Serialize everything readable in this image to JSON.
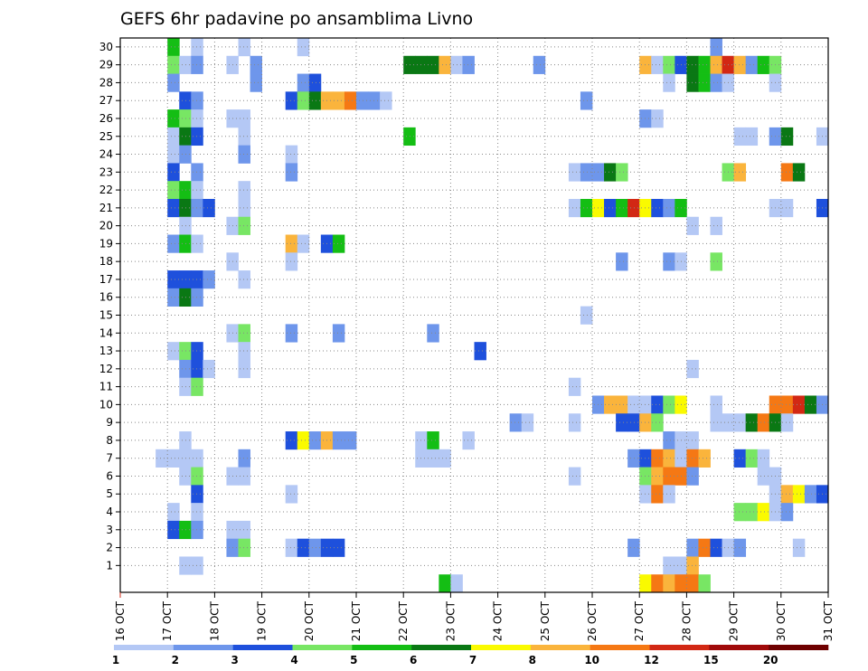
{
  "chart_data": {
    "type": "heatmap",
    "title": "GEFS 6hr padavine po ansamblima Livno",
    "xlabel": "",
    "ylabel": "",
    "x_ticks": [
      "16 OCT",
      "17 OCT",
      "18 OCT",
      "19 OCT",
      "20 OCT",
      "21 OCT",
      "22 OCT",
      "23 OCT",
      "24 OCT",
      "25 OCT",
      "26 OCT",
      "27 OCT",
      "28 OCT",
      "29 OCT",
      "30 OCT",
      "31 OCT"
    ],
    "y_ticks": [
      1,
      2,
      3,
      4,
      5,
      6,
      7,
      8,
      9,
      10,
      11,
      12,
      13,
      14,
      15,
      16,
      17,
      18,
      19,
      20,
      21,
      22,
      23,
      24,
      25,
      26,
      27,
      28,
      29,
      30
    ],
    "y_range": [
      0,
      30
    ],
    "step_hours": 6,
    "start_date": "2000-10-16",
    "grid": true,
    "legend": {
      "placement": "bottom",
      "bounds": [
        1,
        2,
        3,
        4,
        5,
        6,
        7,
        8,
        10,
        12,
        15,
        20
      ],
      "colors": [
        "#b4c8f5",
        "#6e96eb",
        "#1e50dc",
        "#78e664",
        "#14be14",
        "#0a7814",
        "#fafa00",
        "#fab43c",
        "#f57814",
        "#d22814",
        "#a00a0a",
        "#6e0000"
      ]
    },
    "cells": [
      [
        30,
        "2000-10-17T00:00",
        5
      ],
      [
        30,
        "2000-10-17T12:00",
        1
      ],
      [
        30,
        "2000-10-18T12:00",
        1
      ],
      [
        30,
        "2000-10-19T18:00",
        1
      ],
      [
        30,
        "2000-10-28T12:00",
        2
      ],
      [
        29,
        "2000-10-17T00:00",
        4
      ],
      [
        29,
        "2000-10-17T06:00",
        1
      ],
      [
        29,
        "2000-10-17T12:00",
        2
      ],
      [
        29,
        "2000-10-18T06:00",
        1
      ],
      [
        29,
        "2000-10-18T18:00",
        2
      ],
      [
        29,
        "2000-10-22T00:00",
        6
      ],
      [
        29,
        "2000-10-22T06:00",
        6
      ],
      [
        29,
        "2000-10-22T12:00",
        6
      ],
      [
        29,
        "2000-10-22T18:00",
        8
      ],
      [
        29,
        "2000-10-23T00:00",
        1
      ],
      [
        29,
        "2000-10-23T06:00",
        2
      ],
      [
        29,
        "2000-10-24T18:00",
        2
      ],
      [
        29,
        "2000-10-27T00:00",
        8
      ],
      [
        29,
        "2000-10-27T06:00",
        1
      ],
      [
        29,
        "2000-10-27T12:00",
        4
      ],
      [
        29,
        "2000-10-27T18:00",
        3
      ],
      [
        29,
        "2000-10-28T00:00",
        6
      ],
      [
        29,
        "2000-10-28T06:00",
        5
      ],
      [
        29,
        "2000-10-28T12:00",
        9
      ],
      [
        29,
        "2000-10-28T18:00",
        12
      ],
      [
        29,
        "2000-10-29T00:00",
        9
      ],
      [
        29,
        "2000-10-29T06:00",
        2
      ],
      [
        29,
        "2000-10-29T12:00",
        5
      ],
      [
        29,
        "2000-10-29T18:00",
        4
      ],
      [
        28,
        "2000-10-17T00:00",
        2
      ],
      [
        28,
        "2000-10-18T18:00",
        2
      ],
      [
        28,
        "2000-10-19T18:00",
        2
      ],
      [
        28,
        "2000-10-20T00:00",
        3
      ],
      [
        28,
        "2000-10-27T12:00",
        1
      ],
      [
        28,
        "2000-10-28T00:00",
        6
      ],
      [
        28,
        "2000-10-28T06:00",
        5
      ],
      [
        28,
        "2000-10-28T12:00",
        2
      ],
      [
        28,
        "2000-10-28T18:00",
        1
      ],
      [
        28,
        "2000-10-29T18:00",
        1
      ],
      [
        27,
        "2000-10-17T06:00",
        3
      ],
      [
        27,
        "2000-10-17T12:00",
        2
      ],
      [
        27,
        "2000-10-19T12:00",
        3
      ],
      [
        27,
        "2000-10-19T18:00",
        4
      ],
      [
        27,
        "2000-10-20T00:00",
        6
      ],
      [
        27,
        "2000-10-20T06:00",
        8
      ],
      [
        27,
        "2000-10-20T12:00",
        8
      ],
      [
        27,
        "2000-10-20T18:00",
        10
      ],
      [
        27,
        "2000-10-21T00:00",
        2
      ],
      [
        27,
        "2000-10-21T06:00",
        2
      ],
      [
        27,
        "2000-10-21T12:00",
        1
      ],
      [
        27,
        "2000-10-25T18:00",
        2
      ],
      [
        26,
        "2000-10-17T00:00",
        5
      ],
      [
        26,
        "2000-10-17T06:00",
        4
      ],
      [
        26,
        "2000-10-17T12:00",
        1
      ],
      [
        26,
        "2000-10-18T06:00",
        1
      ],
      [
        26,
        "2000-10-18T12:00",
        1
      ],
      [
        26,
        "2000-10-27T00:00",
        2
      ],
      [
        26,
        "2000-10-27T06:00",
        1
      ],
      [
        25,
        "2000-10-17T00:00",
        1
      ],
      [
        25,
        "2000-10-17T06:00",
        6
      ],
      [
        25,
        "2000-10-17T12:00",
        3
      ],
      [
        25,
        "2000-10-18T12:00",
        1
      ],
      [
        25,
        "2000-10-22T00:00",
        5
      ],
      [
        25,
        "2000-10-29T00:00",
        1
      ],
      [
        25,
        "2000-10-29T06:00",
        1
      ],
      [
        25,
        "2000-10-29T18:00",
        2
      ],
      [
        25,
        "2000-10-30T00:00",
        6
      ],
      [
        25,
        "2000-10-30T18:00",
        1
      ],
      [
        24,
        "2000-10-17T00:00",
        1
      ],
      [
        24,
        "2000-10-17T06:00",
        2
      ],
      [
        24,
        "2000-10-18T12:00",
        2
      ],
      [
        24,
        "2000-10-19T12:00",
        1
      ],
      [
        23,
        "2000-10-17T00:00",
        3
      ],
      [
        23,
        "2000-10-17T12:00",
        2
      ],
      [
        23,
        "2000-10-19T12:00",
        2
      ],
      [
        23,
        "2000-10-25T12:00",
        1
      ],
      [
        23,
        "2000-10-25T18:00",
        2
      ],
      [
        23,
        "2000-10-26T00:00",
        2
      ],
      [
        23,
        "2000-10-26T06:00",
        6
      ],
      [
        23,
        "2000-10-26T12:00",
        4
      ],
      [
        23,
        "2000-10-28T18:00",
        4
      ],
      [
        23,
        "2000-10-29T00:00",
        9
      ],
      [
        23,
        "2000-10-30T00:00",
        11
      ],
      [
        23,
        "2000-10-30T06:00",
        6
      ],
      [
        22,
        "2000-10-17T00:00",
        4
      ],
      [
        22,
        "2000-10-17T06:00",
        5
      ],
      [
        22,
        "2000-10-17T12:00",
        1
      ],
      [
        22,
        "2000-10-18T12:00",
        1
      ],
      [
        21,
        "2000-10-17T00:00",
        3
      ],
      [
        21,
        "2000-10-17T06:00",
        6
      ],
      [
        21,
        "2000-10-17T12:00",
        2
      ],
      [
        21,
        "2000-10-17T18:00",
        3
      ],
      [
        21,
        "2000-10-18T12:00",
        1
      ],
      [
        21,
        "2000-10-25T12:00",
        1
      ],
      [
        21,
        "2000-10-25T18:00",
        5
      ],
      [
        21,
        "2000-10-26T00:00",
        7
      ],
      [
        21,
        "2000-10-26T06:00",
        3
      ],
      [
        21,
        "2000-10-26T12:00",
        5
      ],
      [
        21,
        "2000-10-26T18:00",
        12
      ],
      [
        21,
        "2000-10-27T00:00",
        7
      ],
      [
        21,
        "2000-10-27T06:00",
        3
      ],
      [
        21,
        "2000-10-27T12:00",
        2
      ],
      [
        21,
        "2000-10-27T18:00",
        5
      ],
      [
        21,
        "2000-10-29T18:00",
        1
      ],
      [
        21,
        "2000-10-30T00:00",
        1
      ],
      [
        21,
        "2000-10-30T18:00",
        3
      ],
      [
        20,
        "2000-10-17T06:00",
        1
      ],
      [
        20,
        "2000-10-18T06:00",
        1
      ],
      [
        20,
        "2000-10-18T12:00",
        4
      ],
      [
        20,
        "2000-10-28T00:00",
        1
      ],
      [
        20,
        "2000-10-28T12:00",
        1
      ],
      [
        19,
        "2000-10-17T00:00",
        2
      ],
      [
        19,
        "2000-10-17T06:00",
        5
      ],
      [
        19,
        "2000-10-17T12:00",
        1
      ],
      [
        19,
        "2000-10-19T12:00",
        9
      ],
      [
        19,
        "2000-10-19T18:00",
        1
      ],
      [
        19,
        "2000-10-20T06:00",
        3
      ],
      [
        19,
        "2000-10-20T12:00",
        5
      ],
      [
        18,
        "2000-10-18T06:00",
        1
      ],
      [
        18,
        "2000-10-19T12:00",
        1
      ],
      [
        18,
        "2000-10-26T12:00",
        2
      ],
      [
        18,
        "2000-10-27T12:00",
        2
      ],
      [
        18,
        "2000-10-27T18:00",
        1
      ],
      [
        18,
        "2000-10-28T12:00",
        4
      ],
      [
        17,
        "2000-10-17T00:00",
        3
      ],
      [
        17,
        "2000-10-17T06:00",
        3
      ],
      [
        17,
        "2000-10-17T12:00",
        3
      ],
      [
        17,
        "2000-10-17T18:00",
        2
      ],
      [
        17,
        "2000-10-18T12:00",
        1
      ],
      [
        16,
        "2000-10-17T00:00",
        2
      ],
      [
        16,
        "2000-10-17T06:00",
        6
      ],
      [
        16,
        "2000-10-17T12:00",
        2
      ],
      [
        15,
        "2000-10-25T18:00",
        1
      ],
      [
        14,
        "2000-10-18T06:00",
        1
      ],
      [
        14,
        "2000-10-18T12:00",
        4
      ],
      [
        14,
        "2000-10-19T12:00",
        2
      ],
      [
        14,
        "2000-10-20T12:00",
        2
      ],
      [
        14,
        "2000-10-22T12:00",
        2
      ],
      [
        13,
        "2000-10-17T00:00",
        1
      ],
      [
        13,
        "2000-10-17T06:00",
        4
      ],
      [
        13,
        "2000-10-17T12:00",
        3
      ],
      [
        13,
        "2000-10-18T12:00",
        1
      ],
      [
        13,
        "2000-10-23T12:00",
        3
      ],
      [
        12,
        "2000-10-17T06:00",
        2
      ],
      [
        12,
        "2000-10-17T12:00",
        3
      ],
      [
        12,
        "2000-10-17T18:00",
        1
      ],
      [
        12,
        "2000-10-18T12:00",
        1
      ],
      [
        12,
        "2000-10-28T00:00",
        1
      ],
      [
        11,
        "2000-10-17T06:00",
        1
      ],
      [
        11,
        "2000-10-17T12:00",
        4
      ],
      [
        11,
        "2000-10-25T12:00",
        1
      ],
      [
        10,
        "2000-10-26T00:00",
        2
      ],
      [
        10,
        "2000-10-26T06:00",
        9
      ],
      [
        10,
        "2000-10-26T12:00",
        9
      ],
      [
        10,
        "2000-10-26T18:00",
        1
      ],
      [
        10,
        "2000-10-27T00:00",
        1
      ],
      [
        10,
        "2000-10-27T06:00",
        3
      ],
      [
        10,
        "2000-10-27T12:00",
        4
      ],
      [
        10,
        "2000-10-27T18:00",
        7
      ],
      [
        10,
        "2000-10-28T12:00",
        1
      ],
      [
        10,
        "2000-10-29T18:00",
        11
      ],
      [
        10,
        "2000-10-30T00:00",
        11
      ],
      [
        10,
        "2000-10-30T06:00",
        12
      ],
      [
        10,
        "2000-10-30T12:00",
        6
      ],
      [
        10,
        "2000-10-30T18:00",
        2
      ],
      [
        9,
        "2000-10-24T06:00",
        2
      ],
      [
        9,
        "2000-10-24T12:00",
        1
      ],
      [
        9,
        "2000-10-25T12:00",
        1
      ],
      [
        9,
        "2000-10-26T12:00",
        3
      ],
      [
        9,
        "2000-10-26T18:00",
        3
      ],
      [
        9,
        "2000-10-27T00:00",
        8
      ],
      [
        9,
        "2000-10-27T06:00",
        4
      ],
      [
        9,
        "2000-10-28T12:00",
        1
      ],
      [
        9,
        "2000-10-28T18:00",
        1
      ],
      [
        9,
        "2000-10-29T00:00",
        1
      ],
      [
        9,
        "2000-10-29T06:00",
        6
      ],
      [
        9,
        "2000-10-29T12:00",
        11
      ],
      [
        9,
        "2000-10-29T18:00",
        6
      ],
      [
        9,
        "2000-10-30T00:00",
        1
      ],
      [
        8,
        "2000-10-17T06:00",
        1
      ],
      [
        8,
        "2000-10-19T12:00",
        3
      ],
      [
        8,
        "2000-10-19T18:00",
        7
      ],
      [
        8,
        "2000-10-20T00:00",
        2
      ],
      [
        8,
        "2000-10-20T06:00",
        8
      ],
      [
        8,
        "2000-10-20T12:00",
        2
      ],
      [
        8,
        "2000-10-20T18:00",
        2
      ],
      [
        8,
        "2000-10-22T06:00",
        1
      ],
      [
        8,
        "2000-10-22T12:00",
        5
      ],
      [
        8,
        "2000-10-23T06:00",
        1
      ],
      [
        8,
        "2000-10-27T12:00",
        2
      ],
      [
        8,
        "2000-10-27T18:00",
        1
      ],
      [
        8,
        "2000-10-28T00:00",
        1
      ],
      [
        7,
        "2000-10-16T18:00",
        1
      ],
      [
        7,
        "2000-10-17T00:00",
        1
      ],
      [
        7,
        "2000-10-17T06:00",
        1
      ],
      [
        7,
        "2000-10-17T12:00",
        1
      ],
      [
        7,
        "2000-10-18T12:00",
        2
      ],
      [
        7,
        "2000-10-22T06:00",
        1
      ],
      [
        7,
        "2000-10-22T12:00",
        1
      ],
      [
        7,
        "2000-10-22T18:00",
        1
      ],
      [
        7,
        "2000-10-26T18:00",
        2
      ],
      [
        7,
        "2000-10-27T00:00",
        3
      ],
      [
        7,
        "2000-10-27T06:00",
        11
      ],
      [
        7,
        "2000-10-27T12:00",
        8
      ],
      [
        7,
        "2000-10-27T18:00",
        1
      ],
      [
        7,
        "2000-10-28T00:00",
        11
      ],
      [
        7,
        "2000-10-28T06:00",
        8
      ],
      [
        7,
        "2000-10-29T00:00",
        3
      ],
      [
        7,
        "2000-10-29T06:00",
        4
      ],
      [
        7,
        "2000-10-29T12:00",
        1
      ],
      [
        6,
        "2000-10-17T06:00",
        1
      ],
      [
        6,
        "2000-10-17T12:00",
        4
      ],
      [
        6,
        "2000-10-18T06:00",
        1
      ],
      [
        6,
        "2000-10-18T12:00",
        1
      ],
      [
        6,
        "2000-10-25T12:00",
        1
      ],
      [
        6,
        "2000-10-27T00:00",
        4
      ],
      [
        6,
        "2000-10-27T06:00",
        9
      ],
      [
        6,
        "2000-10-27T12:00",
        11
      ],
      [
        6,
        "2000-10-27T18:00",
        11
      ],
      [
        6,
        "2000-10-28T00:00",
        2
      ],
      [
        6,
        "2000-10-29T12:00",
        1
      ],
      [
        6,
        "2000-10-29T18:00",
        1
      ],
      [
        5,
        "2000-10-17T12:00",
        3
      ],
      [
        5,
        "2000-10-19T12:00",
        1
      ],
      [
        5,
        "2000-10-27T00:00",
        1
      ],
      [
        5,
        "2000-10-27T06:00",
        11
      ],
      [
        5,
        "2000-10-27T12:00",
        1
      ],
      [
        5,
        "2000-10-29T18:00",
        1
      ],
      [
        5,
        "2000-10-30T00:00",
        8
      ],
      [
        5,
        "2000-10-30T06:00",
        7
      ],
      [
        5,
        "2000-10-30T12:00",
        2
      ],
      [
        5,
        "2000-10-30T18:00",
        3
      ],
      [
        4,
        "2000-10-17T00:00",
        1
      ],
      [
        4,
        "2000-10-17T12:00",
        1
      ],
      [
        4,
        "2000-10-29T00:00",
        4
      ],
      [
        4,
        "2000-10-29T06:00",
        4
      ],
      [
        4,
        "2000-10-29T12:00",
        7
      ],
      [
        4,
        "2000-10-29T18:00",
        1
      ],
      [
        4,
        "2000-10-30T00:00",
        2
      ],
      [
        3,
        "2000-10-17T00:00",
        3
      ],
      [
        3,
        "2000-10-17T06:00",
        5
      ],
      [
        3,
        "2000-10-17T12:00",
        2
      ],
      [
        3,
        "2000-10-18T06:00",
        1
      ],
      [
        3,
        "2000-10-18T12:00",
        1
      ],
      [
        2,
        "2000-10-18T06:00",
        2
      ],
      [
        2,
        "2000-10-18T12:00",
        4
      ],
      [
        2,
        "2000-10-19T12:00",
        1
      ],
      [
        2,
        "2000-10-19T18:00",
        3
      ],
      [
        2,
        "2000-10-20T00:00",
        2
      ],
      [
        2,
        "2000-10-20T06:00",
        3
      ],
      [
        2,
        "2000-10-20T12:00",
        3
      ],
      [
        2,
        "2000-10-26T18:00",
        2
      ],
      [
        2,
        "2000-10-28T00:00",
        2
      ],
      [
        2,
        "2000-10-28T06:00",
        11
      ],
      [
        2,
        "2000-10-28T12:00",
        3
      ],
      [
        2,
        "2000-10-28T18:00",
        1
      ],
      [
        2,
        "2000-10-29T00:00",
        2
      ],
      [
        2,
        "2000-10-30T06:00",
        1
      ],
      [
        1,
        "2000-10-17T06:00",
        1
      ],
      [
        1,
        "2000-10-17T12:00",
        1
      ],
      [
        1,
        "2000-10-27T12:00",
        1
      ],
      [
        1,
        "2000-10-27T18:00",
        1
      ],
      [
        1,
        "2000-10-28T00:00",
        8
      ],
      [
        0,
        "2000-10-22T18:00",
        5
      ],
      [
        0,
        "2000-10-23T00:00",
        1
      ],
      [
        0,
        "2000-10-27T00:00",
        7
      ],
      [
        0,
        "2000-10-27T06:00",
        11
      ],
      [
        0,
        "2000-10-27T12:00",
        9
      ],
      [
        0,
        "2000-10-27T18:00",
        10
      ],
      [
        0,
        "2000-10-28T00:00",
        11
      ],
      [
        0,
        "2000-10-28T06:00",
        4
      ]
    ]
  }
}
